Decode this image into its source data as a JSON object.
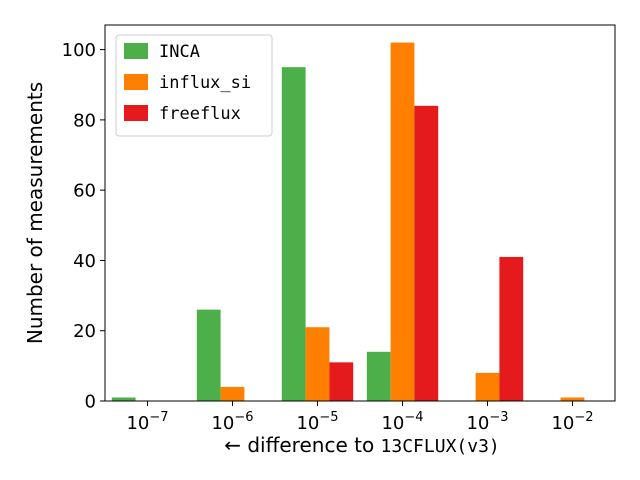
{
  "chart_data": {
    "type": "bar",
    "categories": [
      "10^-7",
      "10^-6",
      "10^-5",
      "10^-4",
      "10^-3",
      "10^-2"
    ],
    "tick_labels": [
      {
        "base": "10",
        "exp": "−7"
      },
      {
        "base": "10",
        "exp": "−6"
      },
      {
        "base": "10",
        "exp": "−5"
      },
      {
        "base": "10",
        "exp": "−4"
      },
      {
        "base": "10",
        "exp": "−3"
      },
      {
        "base": "10",
        "exp": "−2"
      }
    ],
    "series": [
      {
        "name": "INCA",
        "color": "#4daf4a",
        "values": [
          1,
          26,
          95,
          14,
          0,
          0
        ]
      },
      {
        "name": "influx_si",
        "color": "#ff7f00",
        "values": [
          0,
          4,
          21,
          102,
          8,
          1
        ]
      },
      {
        "name": "freeflux",
        "color": "#e41a1c",
        "values": [
          0,
          0,
          11,
          84,
          41,
          0
        ]
      }
    ],
    "xlabel_prefix": "← difference to ",
    "xlabel_code": "13CFLUX(v3)",
    "ylabel": "Number of measurements",
    "ylim": [
      0,
      107
    ],
    "yticks": [
      0,
      20,
      40,
      60,
      80,
      100
    ],
    "grid": false,
    "legend_position": "top-left"
  }
}
